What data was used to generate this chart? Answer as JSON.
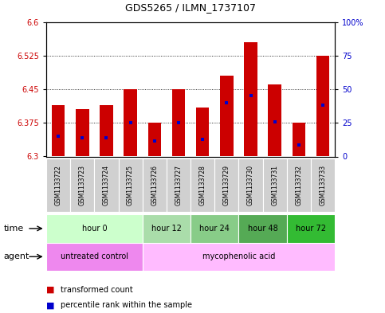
{
  "title": "GDS5265 / ILMN_1737107",
  "samples": [
    "GSM1133722",
    "GSM1133723",
    "GSM1133724",
    "GSM1133725",
    "GSM1133726",
    "GSM1133727",
    "GSM1133728",
    "GSM1133729",
    "GSM1133730",
    "GSM1133731",
    "GSM1133732",
    "GSM1133733"
  ],
  "bar_bottoms": [
    6.3,
    6.3,
    6.3,
    6.3,
    6.3,
    6.3,
    6.3,
    6.3,
    6.3,
    6.3,
    6.3,
    6.3
  ],
  "bar_tops": [
    6.415,
    6.405,
    6.415,
    6.45,
    6.375,
    6.45,
    6.41,
    6.48,
    6.555,
    6.46,
    6.375,
    6.525
  ],
  "percentile_values": [
    6.345,
    6.342,
    6.342,
    6.375,
    6.335,
    6.375,
    6.338,
    6.42,
    6.435,
    6.378,
    6.325,
    6.415
  ],
  "ylim_left": [
    6.3,
    6.6
  ],
  "ylim_right": [
    0,
    100
  ],
  "yticks_left": [
    6.3,
    6.375,
    6.45,
    6.525,
    6.6
  ],
  "yticks_right": [
    0,
    25,
    50,
    75,
    100
  ],
  "bar_color": "#cc0000",
  "percentile_color": "#0000cc",
  "background_color": "#ffffff",
  "plot_bg_color": "#ffffff",
  "sample_bg_color": "#d0d0d0",
  "time_groups": [
    {
      "label": "hour 0",
      "start": 0,
      "end": 4,
      "color": "#ccffcc"
    },
    {
      "label": "hour 12",
      "start": 4,
      "end": 6,
      "color": "#aaddaa"
    },
    {
      "label": "hour 24",
      "start": 6,
      "end": 8,
      "color": "#88cc88"
    },
    {
      "label": "hour 48",
      "start": 8,
      "end": 10,
      "color": "#55aa55"
    },
    {
      "label": "hour 72",
      "start": 10,
      "end": 12,
      "color": "#33bb33"
    }
  ],
  "agent_groups": [
    {
      "label": "untreated control",
      "start": 0,
      "end": 4,
      "color": "#ee88ee"
    },
    {
      "label": "mycophenolic acid",
      "start": 4,
      "end": 12,
      "color": "#ffbbff"
    }
  ],
  "legend_bar_label": "transformed count",
  "legend_pct_label": "percentile rank within the sample",
  "xlabel_time": "time",
  "xlabel_agent": "agent"
}
